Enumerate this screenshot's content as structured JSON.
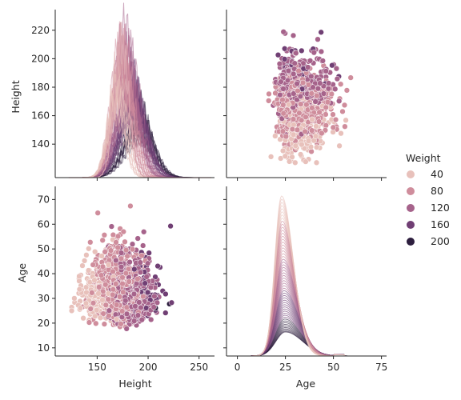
{
  "chart_data": {
    "type": "pairplot",
    "variables": [
      "Height",
      "Age"
    ],
    "hue": {
      "name": "Weight",
      "legend_entries": [
        "40",
        "80",
        "120",
        "160",
        "200"
      ],
      "legend_values": [
        40,
        80,
        120,
        160,
        200
      ],
      "colors": [
        "#e8c1bb",
        "#cf8d9c",
        "#a6638b",
        "#703f74",
        "#2d1e3e"
      ],
      "legend_placement": "right"
    },
    "axes": {
      "Height": {
        "range": [
          112,
          262
        ],
        "ticks": [
          150,
          200,
          250
        ],
        "diag_ticks": [
          140,
          160,
          180,
          200,
          220
        ],
        "diag_range": [
          121,
          230
        ]
      },
      "Age": {
        "range": [
          -4,
          76
        ],
        "ticks": [
          0,
          25,
          50,
          75
        ],
        "row_ticks": [
          10,
          20,
          30,
          40,
          50,
          60,
          70
        ],
        "row_range": [
          8,
          74
        ]
      }
    },
    "panels": [
      {
        "row": "Height",
        "col": "Height",
        "type": "kde",
        "x_label": "",
        "y_label": "Height",
        "peak_x": 174,
        "peak_density_index": 1.0,
        "x_extent": [
          122,
          262
        ]
      },
      {
        "row": "Height",
        "col": "Age",
        "type": "scatter",
        "x_label": "",
        "y_label": "",
        "x_extent": [
          13,
          68
        ],
        "y_extent": [
          127,
          226
        ]
      },
      {
        "row": "Age",
        "col": "Height",
        "type": "scatter",
        "x_label": "Height",
        "y_label": "Age",
        "x_extent": [
          125,
          226
        ],
        "y_extent": [
          11,
          71
        ]
      },
      {
        "row": "Age",
        "col": "Age",
        "type": "kde",
        "x_label": "Age",
        "y_label": "",
        "peak_x": 23,
        "x_extent": [
          0,
          75
        ]
      }
    ],
    "x_axis_labels": [
      "Height",
      "Age"
    ],
    "y_axis_labels": [
      "Height",
      "Age"
    ]
  }
}
